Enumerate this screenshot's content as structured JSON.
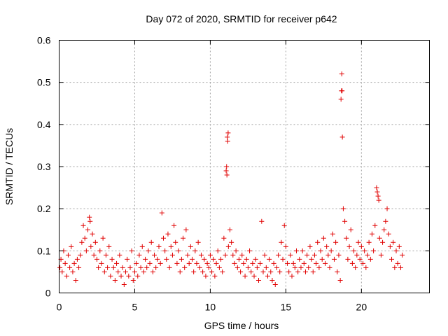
{
  "chart_data": {
    "type": "scatter",
    "title": "Day 072 of 2020, SRMTID for receiver p642",
    "xlabel": "GPS time / hours",
    "ylabel": "SRMTID / TECUs",
    "xlim": [
      0,
      24.5
    ],
    "ylim": [
      0,
      0.6
    ],
    "xticks": [
      0,
      5,
      10,
      15,
      20
    ],
    "xtick_labels": [
      "0",
      "5",
      "10",
      "15",
      "20"
    ],
    "yticks": [
      0,
      0.1,
      0.2,
      0.3,
      0.4,
      0.5,
      0.6
    ],
    "ytick_labels": [
      "0",
      "0.1",
      "0.2",
      "0.3",
      "0.4",
      "0.5",
      "0.6"
    ],
    "grid": true,
    "marker": "+",
    "series": [
      {
        "name": "SRMTID",
        "color": "#e00000",
        "points": [
          [
            0.05,
            0.06
          ],
          [
            0.12,
            0.08
          ],
          [
            0.2,
            0.05
          ],
          [
            0.3,
            0.1
          ],
          [
            0.4,
            0.07
          ],
          [
            0.5,
            0.04
          ],
          [
            0.6,
            0.09
          ],
          [
            0.7,
            0.06
          ],
          [
            0.8,
            0.11
          ],
          [
            0.9,
            0.05
          ],
          [
            1.0,
            0.07
          ],
          [
            1.1,
            0.03
          ],
          [
            1.2,
            0.08
          ],
          [
            1.3,
            0.06
          ],
          [
            1.4,
            0.09
          ],
          [
            1.5,
            0.12
          ],
          [
            1.6,
            0.16
          ],
          [
            1.7,
            0.13
          ],
          [
            1.8,
            0.1
          ],
          [
            1.9,
            0.15
          ],
          [
            2.0,
            0.18
          ],
          [
            2.05,
            0.17
          ],
          [
            2.1,
            0.11
          ],
          [
            2.2,
            0.14
          ],
          [
            2.3,
            0.09
          ],
          [
            2.4,
            0.12
          ],
          [
            2.5,
            0.08
          ],
          [
            2.6,
            0.06
          ],
          [
            2.7,
            0.1
          ],
          [
            2.8,
            0.07
          ],
          [
            2.9,
            0.13
          ],
          [
            3.0,
            0.05
          ],
          [
            3.1,
            0.09
          ],
          [
            3.2,
            0.06
          ],
          [
            3.3,
            0.11
          ],
          [
            3.4,
            0.04
          ],
          [
            3.5,
            0.08
          ],
          [
            3.6,
            0.06
          ],
          [
            3.7,
            0.03
          ],
          [
            3.8,
            0.07
          ],
          [
            3.9,
            0.05
          ],
          [
            4.0,
            0.09
          ],
          [
            4.1,
            0.04
          ],
          [
            4.2,
            0.06
          ],
          [
            4.3,
            0.02
          ],
          [
            4.4,
            0.05
          ],
          [
            4.5,
            0.08
          ],
          [
            4.6,
            0.04
          ],
          [
            4.7,
            0.06
          ],
          [
            4.8,
            0.1
          ],
          [
            4.9,
            0.03
          ],
          [
            5.0,
            0.05
          ],
          [
            5.1,
            0.07
          ],
          [
            5.2,
            0.04
          ],
          [
            5.3,
            0.09
          ],
          [
            5.4,
            0.06
          ],
          [
            5.5,
            0.11
          ],
          [
            5.6,
            0.05
          ],
          [
            5.7,
            0.08
          ],
          [
            5.8,
            0.06
          ],
          [
            5.9,
            0.1
          ],
          [
            6.0,
            0.07
          ],
          [
            6.1,
            0.12
          ],
          [
            6.2,
            0.05
          ],
          [
            6.3,
            0.09
          ],
          [
            6.4,
            0.06
          ],
          [
            6.5,
            0.08
          ],
          [
            6.6,
            0.11
          ],
          [
            6.7,
            0.07
          ],
          [
            6.8,
            0.19
          ],
          [
            6.9,
            0.13
          ],
          [
            7.0,
            0.1
          ],
          [
            7.1,
            0.08
          ],
          [
            7.2,
            0.14
          ],
          [
            7.3,
            0.06
          ],
          [
            7.4,
            0.11
          ],
          [
            7.5,
            0.09
          ],
          [
            7.6,
            0.16
          ],
          [
            7.7,
            0.12
          ],
          [
            7.8,
            0.07
          ],
          [
            7.9,
            0.1
          ],
          [
            8.0,
            0.05
          ],
          [
            8.1,
            0.08
          ],
          [
            8.2,
            0.13
          ],
          [
            8.3,
            0.06
          ],
          [
            8.4,
            0.15
          ],
          [
            8.5,
            0.09
          ],
          [
            8.6,
            0.07
          ],
          [
            8.7,
            0.11
          ],
          [
            8.8,
            0.08
          ],
          [
            8.9,
            0.05
          ],
          [
            9.0,
            0.1
          ],
          [
            9.1,
            0.07
          ],
          [
            9.2,
            0.12
          ],
          [
            9.3,
            0.06
          ],
          [
            9.4,
            0.09
          ],
          [
            9.5,
            0.05
          ],
          [
            9.6,
            0.08
          ],
          [
            9.7,
            0.04
          ],
          [
            9.8,
            0.07
          ],
          [
            9.9,
            0.06
          ],
          [
            10.0,
            0.09
          ],
          [
            10.1,
            0.05
          ],
          [
            10.2,
            0.08
          ],
          [
            10.3,
            0.04
          ],
          [
            10.4,
            0.07
          ],
          [
            10.5,
            0.1
          ],
          [
            10.6,
            0.06
          ],
          [
            10.7,
            0.08
          ],
          [
            10.8,
            0.05
          ],
          [
            10.9,
            0.13
          ],
          [
            11.0,
            0.09
          ],
          [
            11.05,
            0.29
          ],
          [
            11.08,
            0.3
          ],
          [
            11.1,
            0.28
          ],
          [
            11.12,
            0.37
          ],
          [
            11.15,
            0.36
          ],
          [
            11.18,
            0.38
          ],
          [
            11.2,
            0.11
          ],
          [
            11.3,
            0.15
          ],
          [
            11.4,
            0.12
          ],
          [
            11.5,
            0.09
          ],
          [
            11.6,
            0.07
          ],
          [
            11.7,
            0.1
          ],
          [
            11.8,
            0.06
          ],
          [
            11.9,
            0.08
          ],
          [
            12.0,
            0.05
          ],
          [
            12.1,
            0.09
          ],
          [
            12.2,
            0.07
          ],
          [
            12.3,
            0.04
          ],
          [
            12.4,
            0.08
          ],
          [
            12.5,
            0.06
          ],
          [
            12.6,
            0.1
          ],
          [
            12.7,
            0.05
          ],
          [
            12.8,
            0.07
          ],
          [
            12.9,
            0.04
          ],
          [
            13.0,
            0.08
          ],
          [
            13.1,
            0.06
          ],
          [
            13.2,
            0.03
          ],
          [
            13.3,
            0.07
          ],
          [
            13.4,
            0.17
          ],
          [
            13.5,
            0.05
          ],
          [
            13.6,
            0.09
          ],
          [
            13.7,
            0.06
          ],
          [
            13.8,
            0.04
          ],
          [
            13.9,
            0.08
          ],
          [
            14.0,
            0.05
          ],
          [
            14.1,
            0.03
          ],
          [
            14.2,
            0.07
          ],
          [
            14.3,
            0.02
          ],
          [
            14.4,
            0.06
          ],
          [
            14.5,
            0.09
          ],
          [
            14.6,
            0.05
          ],
          [
            14.7,
            0.12
          ],
          [
            14.8,
            0.08
          ],
          [
            14.9,
            0.16
          ],
          [
            15.0,
            0.11
          ],
          [
            15.1,
            0.07
          ],
          [
            15.2,
            0.05
          ],
          [
            15.3,
            0.09
          ],
          [
            15.4,
            0.04
          ],
          [
            15.5,
            0.07
          ],
          [
            15.6,
            0.06
          ],
          [
            15.7,
            0.1
          ],
          [
            15.8,
            0.05
          ],
          [
            15.9,
            0.08
          ],
          [
            16.0,
            0.06
          ],
          [
            16.1,
            0.1
          ],
          [
            16.2,
            0.07
          ],
          [
            16.3,
            0.05
          ],
          [
            16.4,
            0.09
          ],
          [
            16.5,
            0.06
          ],
          [
            16.6,
            0.11
          ],
          [
            16.7,
            0.08
          ],
          [
            16.8,
            0.05
          ],
          [
            16.9,
            0.09
          ],
          [
            17.0,
            0.07
          ],
          [
            17.1,
            0.12
          ],
          [
            17.2,
            0.06
          ],
          [
            17.3,
            0.1
          ],
          [
            17.4,
            0.08
          ],
          [
            17.5,
            0.13
          ],
          [
            17.6,
            0.07
          ],
          [
            17.7,
            0.11
          ],
          [
            17.8,
            0.09
          ],
          [
            17.9,
            0.06
          ],
          [
            18.0,
            0.1
          ],
          [
            18.1,
            0.14
          ],
          [
            18.2,
            0.08
          ],
          [
            18.3,
            0.12
          ],
          [
            18.4,
            0.05
          ],
          [
            18.5,
            0.09
          ],
          [
            18.6,
            0.03
          ],
          [
            18.65,
            0.46
          ],
          [
            18.68,
            0.48
          ],
          [
            18.7,
            0.52
          ],
          [
            18.72,
            0.48
          ],
          [
            18.74,
            0.37
          ],
          [
            18.8,
            0.2
          ],
          [
            18.9,
            0.17
          ],
          [
            19.0,
            0.13
          ],
          [
            19.1,
            0.08
          ],
          [
            19.2,
            0.11
          ],
          [
            19.3,
            0.15
          ],
          [
            19.4,
            0.07
          ],
          [
            19.5,
            0.1
          ],
          [
            19.6,
            0.06
          ],
          [
            19.7,
            0.09
          ],
          [
            19.8,
            0.12
          ],
          [
            19.9,
            0.08
          ],
          [
            20.0,
            0.11
          ],
          [
            20.1,
            0.07
          ],
          [
            20.2,
            0.1
          ],
          [
            20.3,
            0.06
          ],
          [
            20.4,
            0.09
          ],
          [
            20.5,
            0.12
          ],
          [
            20.6,
            0.08
          ],
          [
            20.7,
            0.14
          ],
          [
            20.8,
            0.1
          ],
          [
            20.9,
            0.16
          ],
          [
            21.0,
            0.25
          ],
          [
            21.05,
            0.24
          ],
          [
            21.1,
            0.23
          ],
          [
            21.15,
            0.22
          ],
          [
            21.2,
            0.13
          ],
          [
            21.3,
            0.09
          ],
          [
            21.4,
            0.12
          ],
          [
            21.5,
            0.15
          ],
          [
            21.6,
            0.17
          ],
          [
            21.7,
            0.2
          ],
          [
            21.8,
            0.14
          ],
          [
            21.9,
            0.11
          ],
          [
            22.0,
            0.08
          ],
          [
            22.1,
            0.12
          ],
          [
            22.2,
            0.06
          ],
          [
            22.3,
            0.1
          ],
          [
            22.4,
            0.07
          ],
          [
            22.5,
            0.11
          ],
          [
            22.6,
            0.06
          ],
          [
            22.7,
            0.09
          ]
        ]
      }
    ]
  }
}
